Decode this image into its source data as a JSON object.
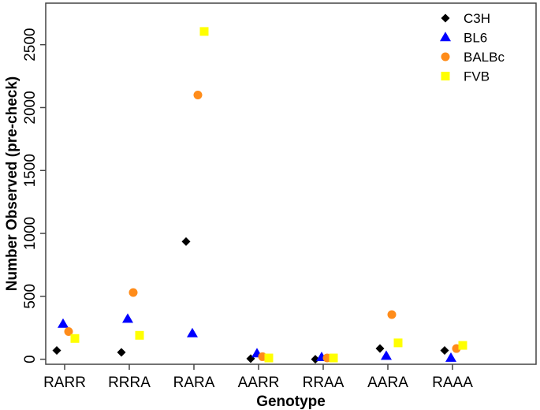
{
  "chart_data": {
    "type": "scatter",
    "xlabel": "Genotype",
    "ylabel": "Number Observed (pre-check)",
    "categories": [
      "RARR",
      "RRRA",
      "RARA",
      "AARR",
      "RRAA",
      "AARA",
      "RAAA"
    ],
    "yticks": [
      0,
      500,
      1000,
      1500,
      2000,
      2500
    ],
    "ylim": [
      -40,
      2830
    ],
    "grid": false,
    "legend_position": "top-right",
    "series": [
      {
        "name": "C3H",
        "marker": "diamond",
        "color": "#000000",
        "values": [
          70,
          55,
          935,
          5,
          0,
          85,
          70
        ]
      },
      {
        "name": "BL6",
        "marker": "triangle",
        "color": "#0000ff",
        "values": [
          280,
          320,
          205,
          45,
          15,
          25,
          10
        ]
      },
      {
        "name": "BALBc",
        "marker": "circle",
        "color": "#ff8c1a",
        "values": [
          220,
          530,
          2100,
          20,
          10,
          355,
          85
        ]
      },
      {
        "name": "FVB",
        "marker": "square",
        "color": "#ffff00",
        "values": [
          165,
          190,
          2605,
          10,
          10,
          130,
          110
        ]
      }
    ]
  }
}
